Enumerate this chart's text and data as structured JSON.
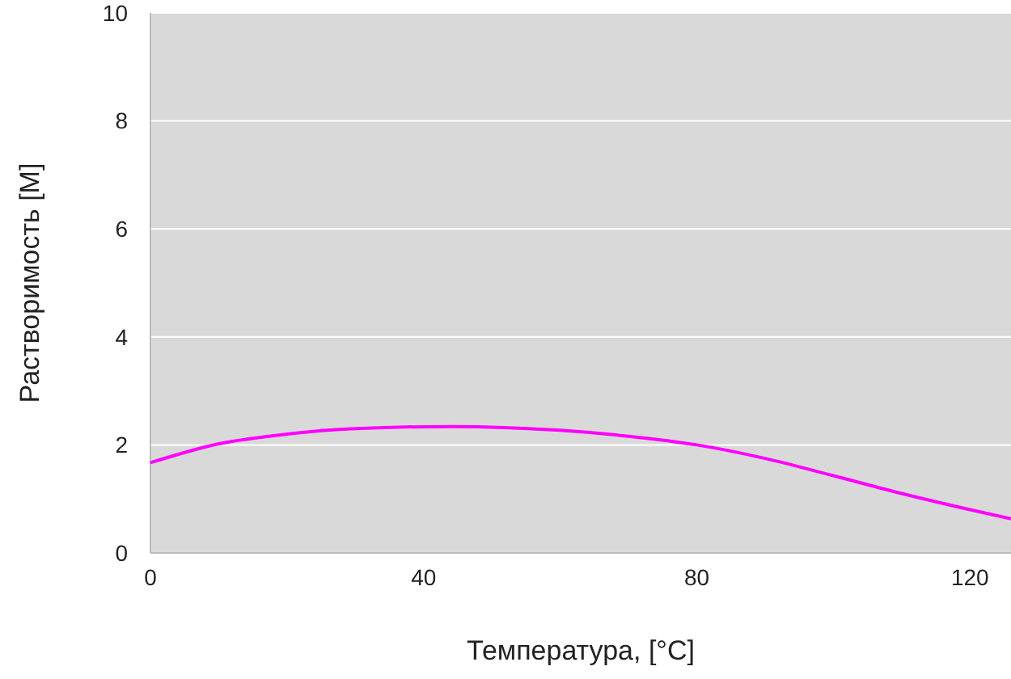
{
  "chart_data": {
    "type": "line",
    "xlabel": "Температура, [°C]",
    "ylabel": "Растворимость [M]",
    "x": [
      0,
      10,
      20,
      30,
      44,
      60,
      70,
      80,
      90,
      100,
      110,
      120,
      126
    ],
    "series": [
      {
        "color": "#ff00ff",
        "values": [
          1.67,
          2.02,
          2.2,
          2.3,
          2.34,
          2.27,
          2.16,
          2.0,
          1.75,
          1.43,
          1.1,
          0.8,
          0.63
        ]
      }
    ],
    "xlim": [
      0,
      126
    ],
    "xticks": [
      0,
      40,
      80,
      120
    ],
    "ylim": [
      0,
      10
    ],
    "yticks": [
      0,
      2,
      4,
      6,
      8,
      10
    ],
    "grid": "y",
    "marker": "none",
    "line_style": "solid"
  }
}
